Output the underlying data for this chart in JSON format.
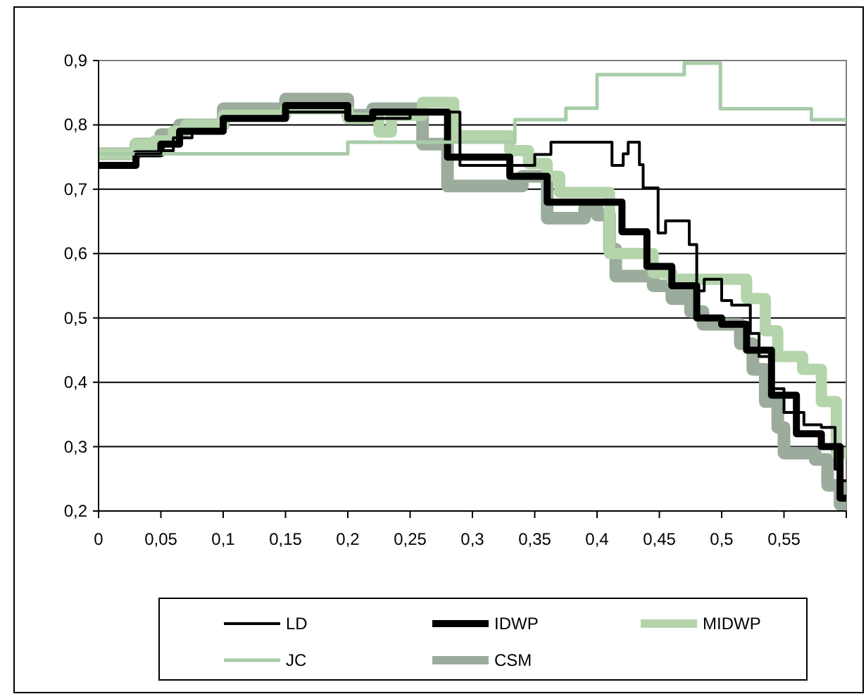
{
  "chart_data": {
    "type": "step",
    "xlim": [
      0,
      0.6
    ],
    "ylim": [
      0.2,
      0.9
    ],
    "xticks": [
      0,
      {
        "value": 0.05,
        "label": "0,05"
      },
      {
        "value": 0.1,
        "label": "0,1"
      },
      {
        "value": 0.15,
        "label": "0,15"
      },
      {
        "value": 0.2,
        "label": "0,2"
      },
      {
        "value": 0.25,
        "label": "0,25"
      },
      {
        "value": 0.3,
        "label": "0,3"
      },
      {
        "value": 0.35,
        "label": "0,35"
      },
      {
        "value": 0.4,
        "label": "0,4"
      },
      {
        "value": 0.45,
        "label": "0,45"
      },
      {
        "value": 0.5,
        "label": "0,5"
      },
      {
        "value": 0.55,
        "label": "0,55"
      },
      {
        "value": 0.6,
        "label": null
      }
    ],
    "yticks": [
      {
        "value": 0.2,
        "label": "0,2"
      },
      {
        "value": 0.3,
        "label": "0,3"
      },
      {
        "value": 0.4,
        "label": "0,4"
      },
      {
        "value": 0.5,
        "label": "0,5"
      },
      {
        "value": 0.6,
        "label": "0,6"
      },
      {
        "value": 0.7,
        "label": "0,7"
      },
      {
        "value": 0.8,
        "label": "0,8"
      },
      {
        "value": 0.9,
        "label": "0,9"
      }
    ],
    "grid": "y",
    "legend": "bottom",
    "series": [
      {
        "name": "LD",
        "color": "#000000",
        "x": [
          0,
          0.03,
          0.05,
          0.06,
          0.075,
          0.1,
          0.15,
          0.2,
          0.25,
          0.29,
          0.35,
          0.363,
          0.412,
          0.421,
          0.425,
          0.434,
          0.437,
          0.449,
          0.455,
          0.474,
          0.48,
          0.486,
          0.5,
          0.508,
          0.523,
          0.53,
          0.541,
          0.55,
          0.566,
          0.58,
          0.591,
          0.595,
          0.6
        ],
        "values": [
          0.74,
          0.755,
          0.76,
          0.78,
          0.79,
          0.81,
          0.82,
          0.81,
          0.82,
          0.737,
          0.754,
          0.773,
          0.737,
          0.755,
          0.773,
          0.738,
          0.702,
          0.632,
          0.651,
          0.614,
          0.542,
          0.56,
          0.527,
          0.52,
          0.476,
          0.44,
          0.39,
          0.353,
          0.334,
          0.33,
          0.265,
          0.247,
          0.247
        ]
      },
      {
        "name": "IDWP",
        "color": "#000000",
        "x": [
          0,
          0.03,
          0.05,
          0.065,
          0.1,
          0.15,
          0.2,
          0.22,
          0.28,
          0.33,
          0.36,
          0.42,
          0.44,
          0.46,
          0.48,
          0.5,
          0.52,
          0.54,
          0.56,
          0.58,
          0.595,
          0.6
        ],
        "values": [
          0.737,
          0.755,
          0.77,
          0.79,
          0.81,
          0.83,
          0.81,
          0.82,
          0.75,
          0.72,
          0.68,
          0.634,
          0.58,
          0.55,
          0.5,
          0.49,
          0.45,
          0.38,
          0.32,
          0.3,
          0.22,
          0.22
        ]
      },
      {
        "name": "MIDWP",
        "color": "#b4d4ac",
        "x": [
          0,
          0.03,
          0.045,
          0.06,
          0.07,
          0.1,
          0.15,
          0.2,
          0.225,
          0.235,
          0.26,
          0.285,
          0.33,
          0.345,
          0.36,
          0.37,
          0.41,
          0.445,
          0.46,
          0.48,
          0.52,
          0.535,
          0.545,
          0.565,
          0.58,
          0.592,
          0.6
        ],
        "values": [
          0.755,
          0.77,
          0.775,
          0.79,
          0.8,
          0.815,
          0.825,
          0.81,
          0.789,
          0.815,
          0.835,
          0.783,
          0.76,
          0.74,
          0.72,
          0.695,
          0.6,
          0.57,
          0.56,
          0.56,
          0.53,
          0.48,
          0.44,
          0.42,
          0.37,
          0.29,
          0.29
        ]
      },
      {
        "name": "JC",
        "color": "#a8cca8",
        "x": [
          0,
          0.2,
          0.334,
          0.375,
          0.4,
          0.47,
          0.499,
          0.572,
          0.6
        ],
        "values": [
          0.755,
          0.773,
          0.808,
          0.826,
          0.878,
          0.896,
          0.825,
          0.808,
          0.808
        ]
      },
      {
        "name": "CSM",
        "color": "#9cac9c",
        "x": [
          0,
          0.03,
          0.05,
          0.065,
          0.1,
          0.15,
          0.2,
          0.22,
          0.26,
          0.28,
          0.34,
          0.36,
          0.39,
          0.4,
          0.41,
          0.415,
          0.445,
          0.46,
          0.47,
          0.475,
          0.485,
          0.515,
          0.525,
          0.535,
          0.545,
          0.55,
          0.575,
          0.585,
          0.595,
          0.6
        ],
        "values": [
          0.755,
          0.77,
          0.785,
          0.8,
          0.825,
          0.84,
          0.815,
          0.825,
          0.77,
          0.705,
          0.72,
          0.655,
          0.67,
          0.66,
          0.607,
          0.565,
          0.55,
          0.53,
          0.55,
          0.51,
          0.49,
          0.46,
          0.42,
          0.37,
          0.33,
          0.29,
          0.28,
          0.24,
          0.21,
          0.21
        ]
      }
    ]
  }
}
